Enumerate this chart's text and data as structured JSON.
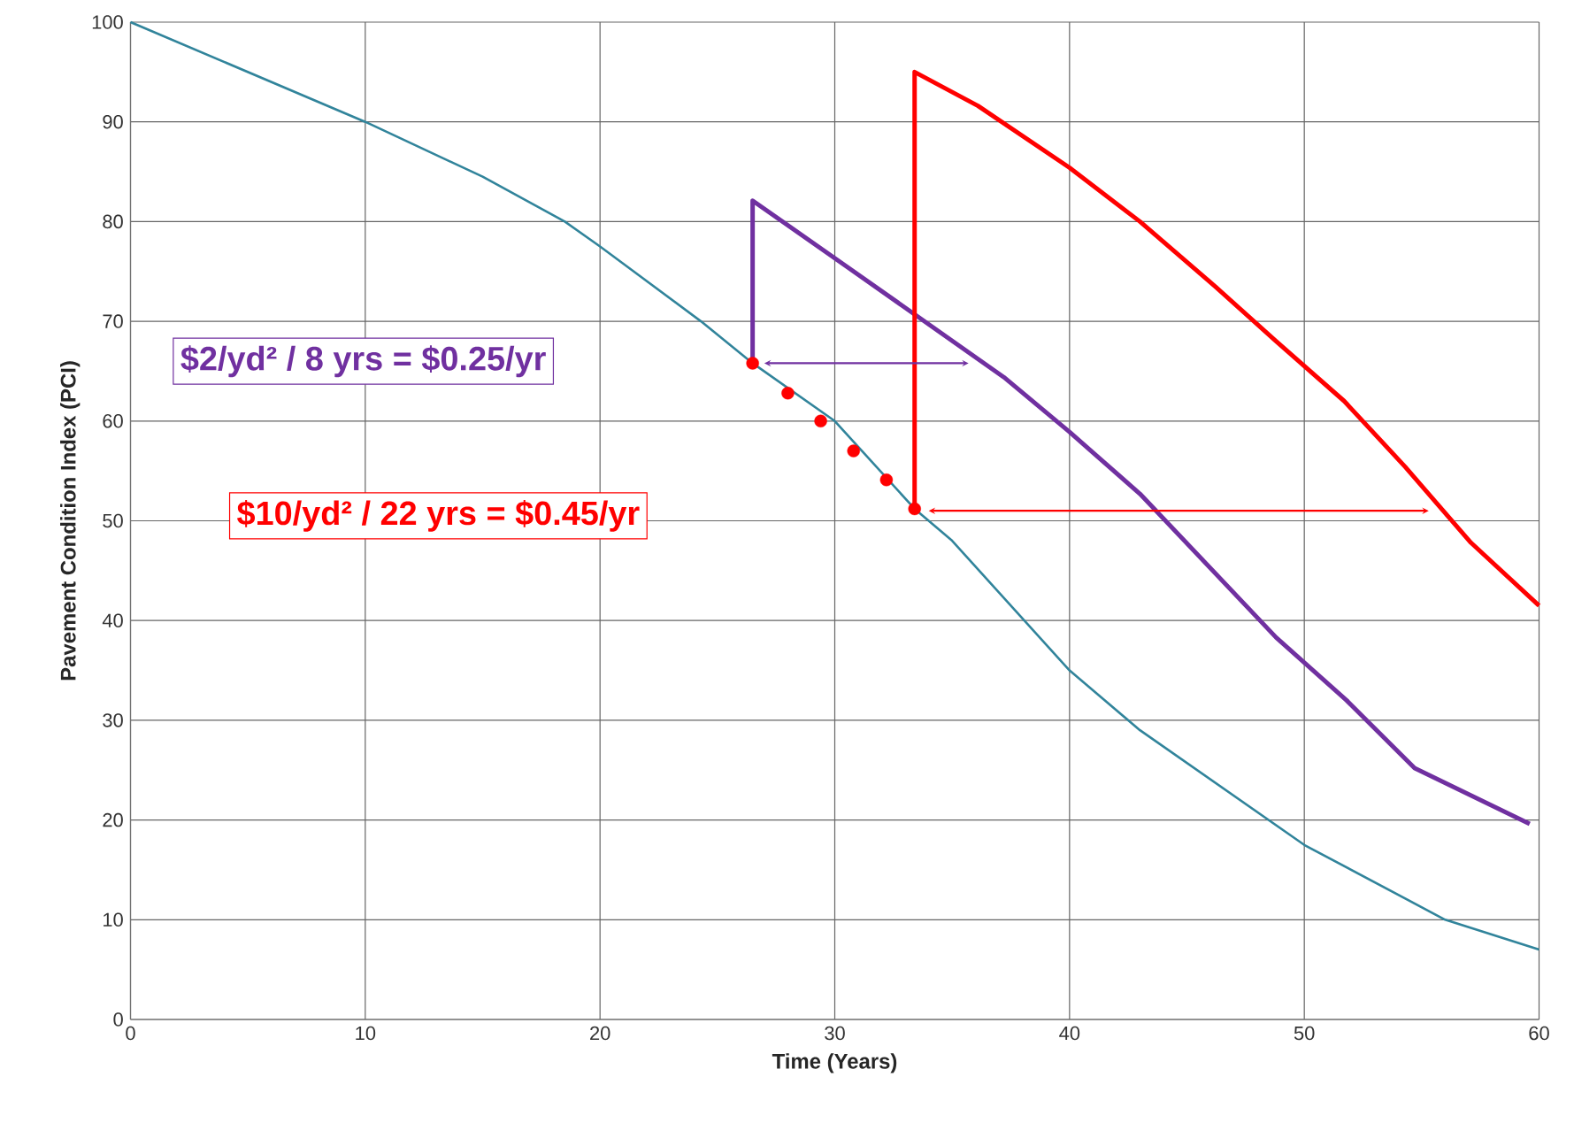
{
  "chart_data": {
    "type": "line",
    "xlabel": "Time (Years)",
    "ylabel": "Pavement Condition Index (PCI)",
    "xlim": [
      0,
      60
    ],
    "ylim": [
      0,
      100
    ],
    "xticks": [
      0,
      10,
      20,
      30,
      40,
      50,
      60
    ],
    "yticks": [
      0,
      10,
      20,
      30,
      40,
      50,
      60,
      70,
      80,
      90,
      100
    ],
    "grid": true,
    "series": [
      {
        "color": "#31849b",
        "x": [
          0,
          5,
          10,
          15,
          18.5,
          20,
          24.3,
          26.5,
          30,
          33.4,
          35,
          40,
          43,
          50,
          56,
          60
        ],
        "values": [
          100,
          95,
          90,
          84.5,
          80,
          77.5,
          70,
          65.8,
          60,
          51.2,
          48,
          35,
          29,
          17.5,
          10,
          7
        ]
      },
      {
        "color": "#7030a0",
        "x": [
          26.5,
          26.5,
          30.2,
          37.2,
          40,
          43,
          48.8,
          51.8,
          54.7,
          59.6
        ],
        "values": [
          65.8,
          82.1,
          76,
          64.4,
          58.9,
          52.7,
          38.3,
          32,
          25.2,
          19.6
        ]
      },
      {
        "color": "#ff0000",
        "x": [
          33.4,
          33.4,
          36.1,
          40,
          43,
          46.2,
          48.8,
          51.7,
          54.3,
          57.1,
          60
        ],
        "values": [
          51.2,
          95,
          91.6,
          85.4,
          80,
          73.5,
          68,
          62,
          55.4,
          47.8,
          41.5
        ]
      },
      {
        "type": "scatter",
        "marker": "circle",
        "color": "#ff0000",
        "x": [
          26.5,
          28,
          29.4,
          30.8,
          32.2,
          33.4
        ],
        "values": [
          65.8,
          62.8,
          60,
          57,
          54.1,
          51.2
        ]
      },
      {
        "color": "#7030a0",
        "marker": "cross",
        "x": [
          27,
          35.7
        ],
        "values": [
          65.8,
          65.8
        ]
      },
      {
        "color": "#ff0000",
        "marker": "cross",
        "x": [
          34,
          55.3
        ],
        "values": [
          51,
          51
        ]
      }
    ],
    "annotations": [
      "$2/yd² / 8 yrs = $0.25/yr",
      "$10/yd² / 22 yrs = $0.45/yr"
    ]
  }
}
